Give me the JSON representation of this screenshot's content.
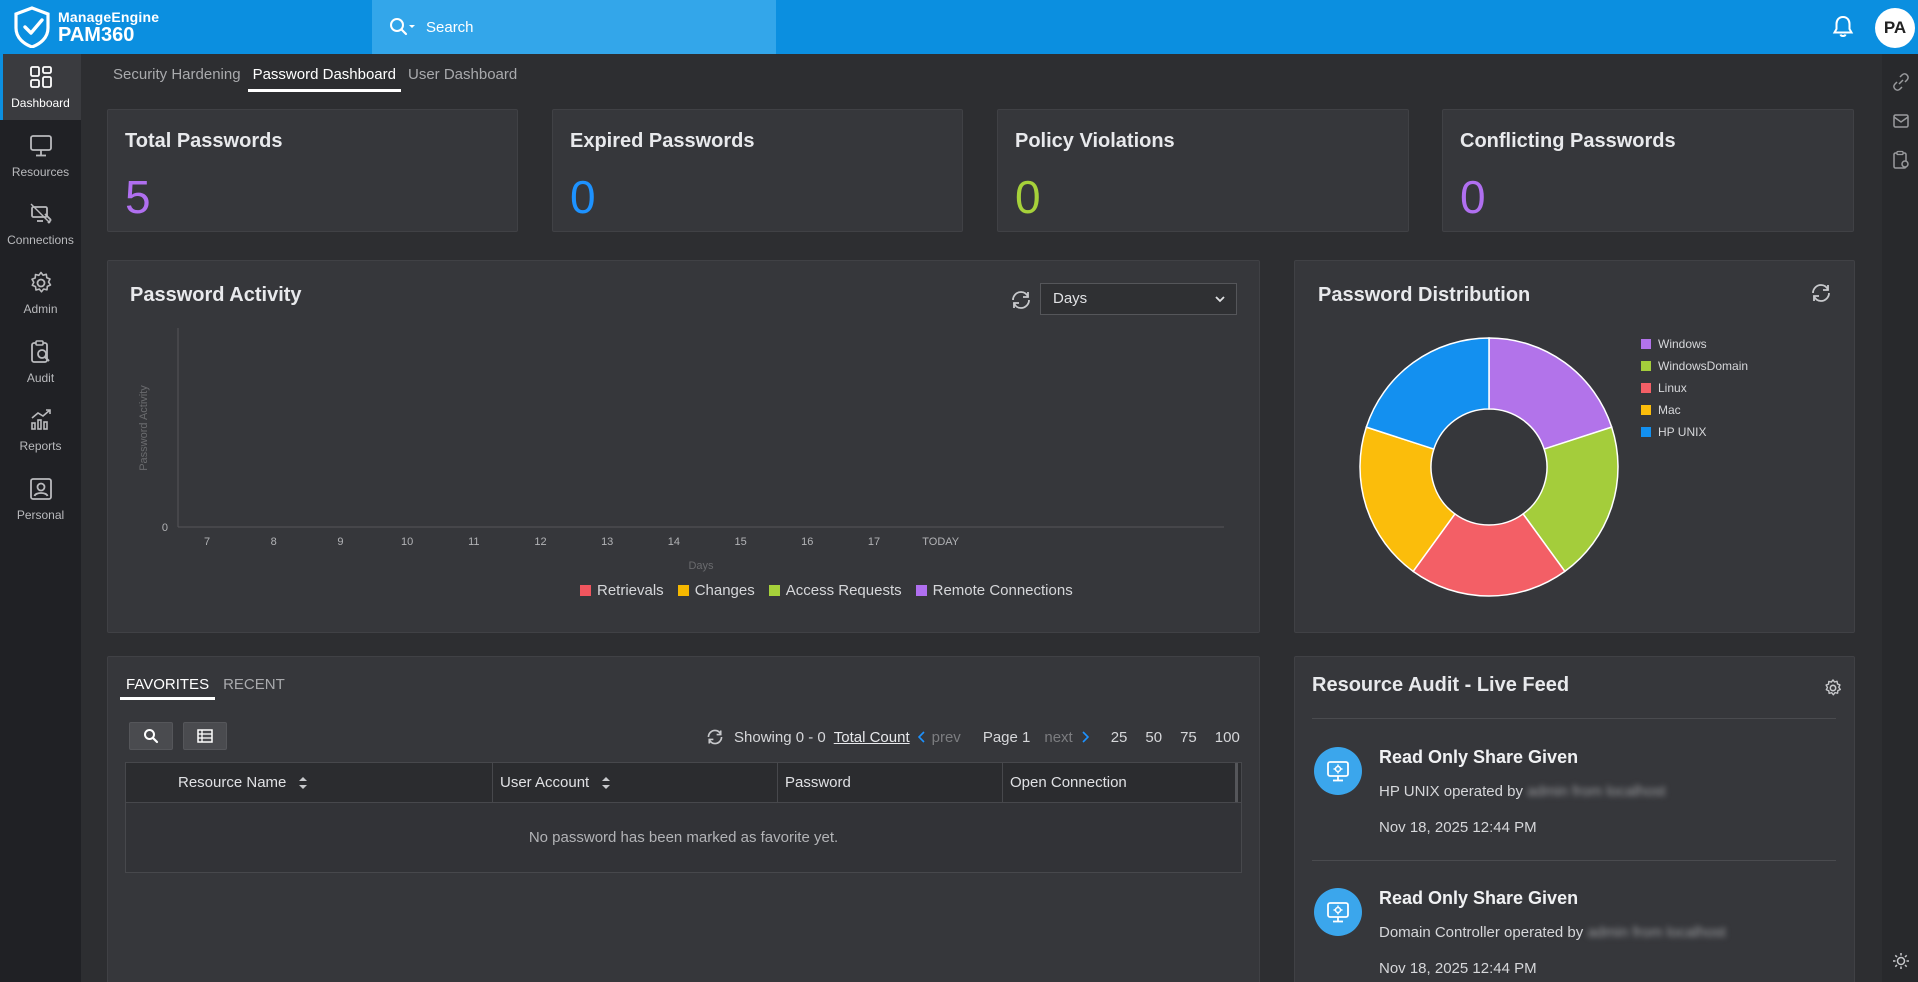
{
  "app": {
    "vendor": "ManageEngine",
    "product": "PAM360",
    "user_initials": "PA"
  },
  "search": {
    "placeholder": "Search"
  },
  "nav": [
    {
      "label": "Dashboard",
      "icon": "dashboard-icon",
      "active": true
    },
    {
      "label": "Resources",
      "icon": "monitor-icon"
    },
    {
      "label": "Connections",
      "icon": "connections-icon"
    },
    {
      "label": "Admin",
      "icon": "gear-icon"
    },
    {
      "label": "Audit",
      "icon": "audit-icon"
    },
    {
      "label": "Reports",
      "icon": "reports-icon"
    },
    {
      "label": "Personal",
      "icon": "personal-icon"
    }
  ],
  "tabs": [
    {
      "label": "Security Hardening"
    },
    {
      "label": "Password Dashboard",
      "active": true
    },
    {
      "label": "User Dashboard"
    }
  ],
  "stats": [
    {
      "label": "Total Passwords",
      "value": "5",
      "color": "#b06ff0"
    },
    {
      "label": "Expired Passwords",
      "value": "0",
      "color": "#1d92ff"
    },
    {
      "label": "Policy Violations",
      "value": "0",
      "color": "#a6d13a"
    },
    {
      "label": "Conflicting Passwords",
      "value": "0",
      "color": "#b06ff0"
    }
  ],
  "activity": {
    "title": "Password Activity",
    "range_selected": "Days",
    "chart_data": {
      "type": "line",
      "ylabel": "Password Activity",
      "xlabel": "Days",
      "categories": [
        "7",
        "8",
        "9",
        "10",
        "11",
        "12",
        "13",
        "14",
        "15",
        "16",
        "17",
        "TODAY"
      ],
      "y_ticks": [
        "0"
      ],
      "legend": [
        {
          "name": "Retrievals",
          "color": "#f0555e"
        },
        {
          "name": "Changes",
          "color": "#f5b800"
        },
        {
          "name": "Access Requests",
          "color": "#a6d13a"
        },
        {
          "name": "Remote Connections",
          "color": "#b06ff0"
        }
      ]
    }
  },
  "distribution": {
    "title": "Password Distribution",
    "chart_data": {
      "type": "pie",
      "categories": [
        "Windows",
        "WindowsDomain",
        "Linux",
        "Mac",
        "HP UNIX"
      ],
      "values": [
        1,
        1,
        1,
        1,
        1
      ],
      "colors": [
        "#b273ea",
        "#a4cd3b",
        "#f35f66",
        "#fbbd0b",
        "#1390f0"
      ],
      "legend_position": "right"
    }
  },
  "favorites": {
    "tabs": [
      {
        "label": "FAVORITES",
        "active": true
      },
      {
        "label": "RECENT"
      }
    ],
    "pager": {
      "showing": "Showing 0 - 0",
      "total": "Total Count",
      "prev": "prev",
      "page": "Page 1",
      "next": "next",
      "sizes": [
        "25",
        "50",
        "75",
        "100"
      ]
    },
    "columns": [
      "Resource Name",
      "User Account",
      "Password",
      "Open Connection"
    ],
    "empty_message": "No password has been marked as favorite yet."
  },
  "audit": {
    "title": "Resource Audit - Live Feed",
    "items": [
      {
        "title": "Read Only Share Given",
        "resource": "HP UNIX operated by",
        "actor": "admin from localhost",
        "time": "Nov 18, 2025 12:44 PM"
      },
      {
        "title": "Read Only Share Given",
        "resource": "Domain Controller operated by",
        "actor": "admin from localhost",
        "time": "Nov 18, 2025 12:44 PM"
      }
    ]
  }
}
